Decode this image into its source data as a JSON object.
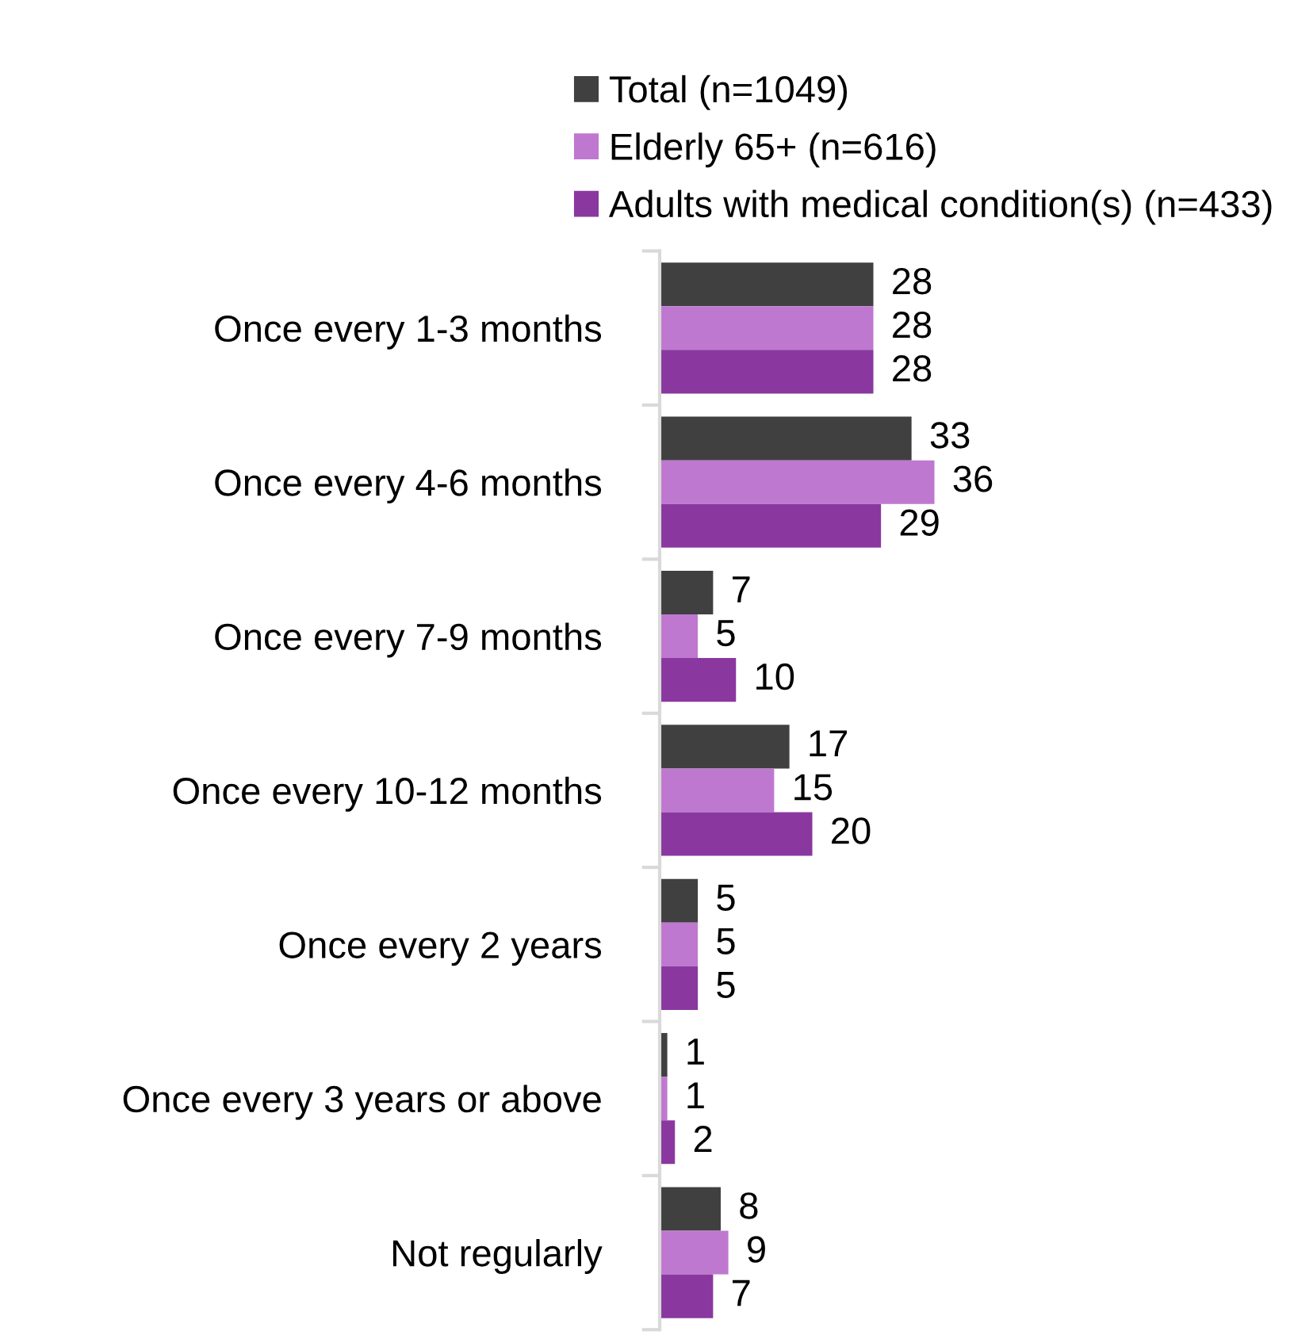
{
  "chart_data": {
    "type": "bar",
    "orientation": "horizontal",
    "data_labels": true,
    "legend": "top",
    "grid": false,
    "categories": [
      "Once every 1-3 months",
      "Once every 4-6 months",
      "Once every 7-9 months",
      "Once every 10-12 months",
      "Once every 2 years",
      "Once every 3 years or above",
      "Not regularly"
    ],
    "series": [
      {
        "name": "Total (n=1049)",
        "color": "#404040",
        "values": [
          28,
          33,
          7,
          17,
          5,
          1,
          8
        ]
      },
      {
        "name": "Elderly 65+ (n=616)",
        "color": "#bf78d0",
        "values": [
          28,
          36,
          5,
          15,
          5,
          1,
          9
        ]
      },
      {
        "name": "Adults with medical condition(s) (n=433)",
        "color": "#8a38a0",
        "values": [
          28,
          29,
          10,
          20,
          5,
          2,
          7
        ]
      }
    ]
  }
}
